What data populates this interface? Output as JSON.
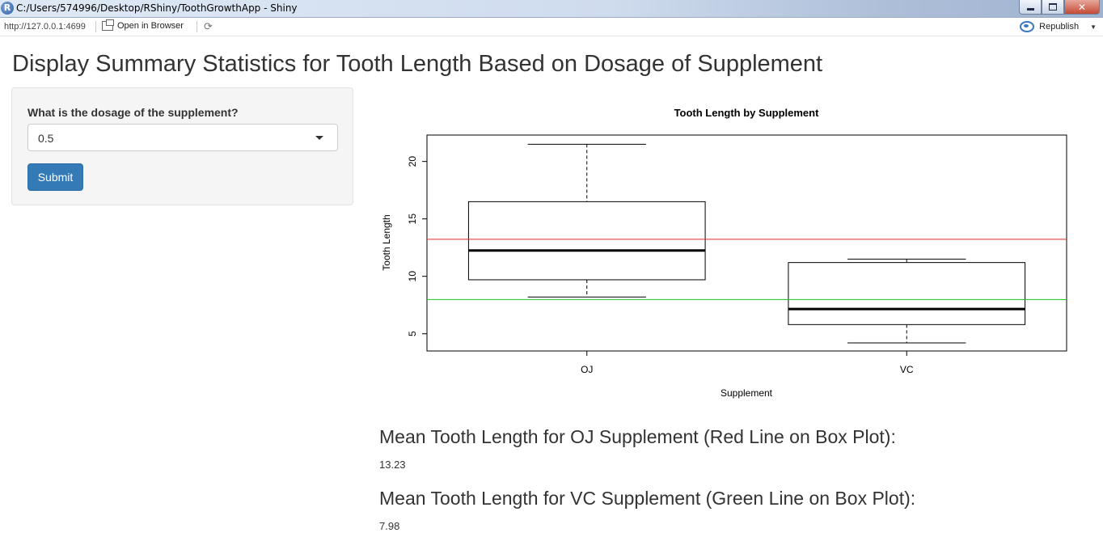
{
  "window": {
    "title": "C:/Users/574996/Desktop/RShiny/ToothGrowthApp - Shiny",
    "app_icon_letter": "R"
  },
  "toolbar": {
    "url": "http://127.0.0.1:4699",
    "open_in_browser": "Open in Browser",
    "republish": "Republish"
  },
  "page": {
    "title": "Display Summary Statistics for Tooth Length Based on Dosage of Supplement"
  },
  "sidebar": {
    "dose_label": "What is the dosage of the supplement?",
    "dose_selected": "0.5",
    "submit_label": "Submit"
  },
  "chart_data": {
    "type": "boxplot",
    "title": "Tooth Length by Supplement",
    "xlabel": "Supplement",
    "ylabel": "Tooth Length",
    "categories": [
      "OJ",
      "VC"
    ],
    "ylim": [
      3.5,
      22.3
    ],
    "yticks": [
      5,
      10,
      15,
      20
    ],
    "grid": false,
    "boxes": [
      {
        "name": "OJ",
        "min": 8.2,
        "q1": 9.7,
        "median": 12.25,
        "q3": 16.5,
        "max": 21.5
      },
      {
        "name": "VC",
        "min": 4.2,
        "q1": 5.8,
        "median": 7.15,
        "q3": 11.2,
        "max": 11.5
      }
    ],
    "hlines": [
      {
        "value": 13.23,
        "color": "#d9312b"
      },
      {
        "value": 7.98,
        "color": "#19c419"
      }
    ]
  },
  "summary": {
    "oj_heading": "Mean Tooth Length for OJ Supplement (Red Line on Box Plot):",
    "oj_value": "13.23",
    "vc_heading": "Mean Tooth Length for VC Supplement (Green Line on Box Plot):",
    "vc_value": "7.98"
  }
}
